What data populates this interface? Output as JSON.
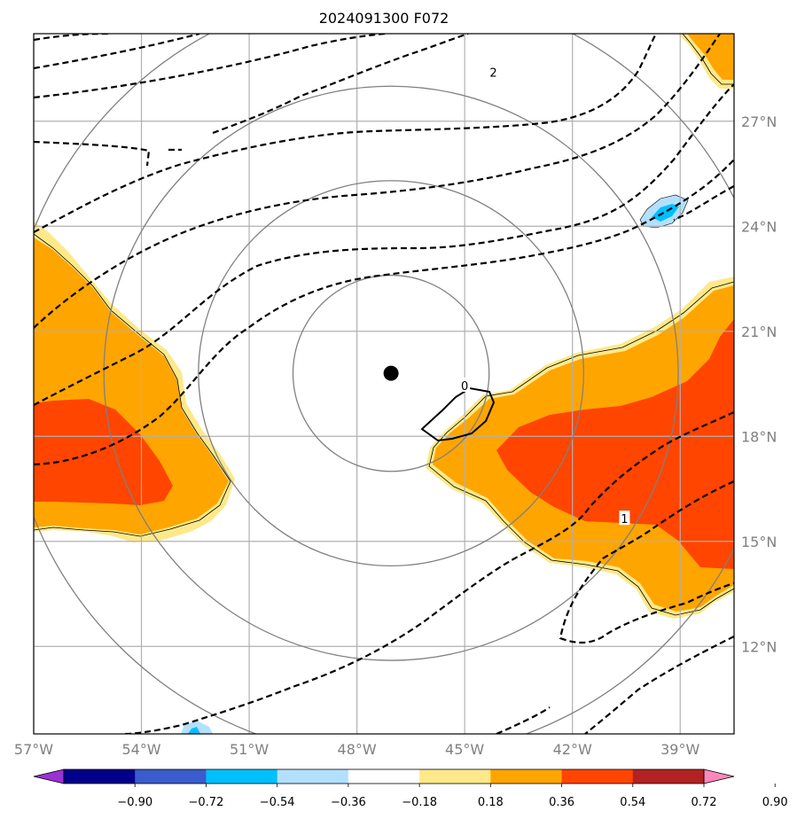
{
  "title": "2024091300 F072",
  "map": {
    "lon_range": [
      -57,
      -37.5
    ],
    "lat_range": [
      9.5,
      29.5
    ],
    "lon_ticks": [
      {
        "value": -57,
        "label": "57°W"
      },
      {
        "value": -54,
        "label": "54°W"
      },
      {
        "value": -51,
        "label": "51°W"
      },
      {
        "value": -48,
        "label": "48°W"
      },
      {
        "value": -45,
        "label": "45°W"
      },
      {
        "value": -42,
        "label": "42°W"
      },
      {
        "value": -39,
        "label": "39°W"
      }
    ],
    "lat_ticks": [
      {
        "value": 12,
        "label": "12°N"
      },
      {
        "value": 15,
        "label": "15°N"
      },
      {
        "value": 18,
        "label": "18°N"
      },
      {
        "value": 21,
        "label": "21°N"
      },
      {
        "value": 24,
        "label": "24°N"
      },
      {
        "value": 27,
        "label": "27°N"
      }
    ],
    "gridlines": true,
    "center": {
      "lon": -47.05,
      "lat": 19.8
    },
    "range_ring_radii_deg": [
      2.8,
      5.5,
      8.2,
      11.0
    ],
    "contour_labels": [
      {
        "text": "2",
        "lon": -44.2,
        "lat": 28.4
      },
      {
        "text": "1",
        "lon": -40.55,
        "lat": 15.65
      },
      {
        "text": "0",
        "lon": -45.0,
        "lat": 19.45
      }
    ]
  },
  "colorbar": {
    "ticks": [
      "−0.90",
      "−0.72",
      "−0.54",
      "−0.36",
      "−0.18",
      "0.18",
      "0.36",
      "0.54",
      "0.72",
      "0.90"
    ],
    "colors": [
      "#9a31d6",
      "#00008b",
      "#3a5ccc",
      "#00bfff",
      "#b3e0ff",
      "#ffffff",
      "#fde98a",
      "#ffa500",
      "#ff4500",
      "#b22222",
      "#ff88bb"
    ],
    "extend": "both"
  },
  "fill_colors": {
    "pale": "#fde98a",
    "orange": "#ffa500",
    "red": "#ff4500",
    "light_blue": "#b3e0ff",
    "blue": "#00bfff",
    "center_marker": "#000000",
    "grid": "#b0b0b0",
    "ring": "#808080"
  }
}
